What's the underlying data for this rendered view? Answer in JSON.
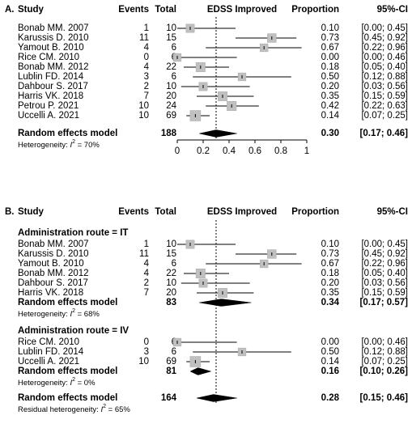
{
  "chart_data": [
    {
      "type": "forest",
      "panel_label": "A.",
      "headers": {
        "study": "Study",
        "events": "Events",
        "total": "Total",
        "plot": "EDSS Improved",
        "proportion": "Proportion",
        "ci": "95%-CI"
      },
      "groups": [
        {
          "name": "",
          "studies": [
            {
              "study": "Bonab MM. 2007",
              "events": "1",
              "total": "10",
              "proportion": 0.1,
              "lower": 0.0,
              "upper": 0.45,
              "proportion_label": "0.10",
              "ci_label": "[0.00; 0.45]"
            },
            {
              "study": "Karussis D. 2010",
              "events": "11",
              "total": "15",
              "proportion": 0.73,
              "lower": 0.45,
              "upper": 0.92,
              "proportion_label": "0.73",
              "ci_label": "[0.45; 0.92]"
            },
            {
              "study": "Yamout B. 2010",
              "events": "4",
              "total": "6",
              "proportion": 0.67,
              "lower": 0.22,
              "upper": 0.96,
              "proportion_label": "0.67",
              "ci_label": "[0.22; 0.96]"
            },
            {
              "study": "Rice CM. 2010",
              "events": "0",
              "total": "6",
              "proportion": 0.0,
              "lower": 0.0,
              "upper": 0.46,
              "proportion_label": "0.00",
              "ci_label": "[0.00; 0.46]"
            },
            {
              "study": "Bonab MM. 2012",
              "events": "4",
              "total": "22",
              "proportion": 0.18,
              "lower": 0.05,
              "upper": 0.4,
              "proportion_label": "0.18",
              "ci_label": "[0.05; 0.40]"
            },
            {
              "study": "Lublin FD. 2014",
              "events": "3",
              "total": "6",
              "proportion": 0.5,
              "lower": 0.12,
              "upper": 0.88,
              "proportion_label": "0.50",
              "ci_label": "[0.12; 0.88]"
            },
            {
              "study": "Dahbour S. 2017",
              "events": "2",
              "total": "10",
              "proportion": 0.2,
              "lower": 0.03,
              "upper": 0.56,
              "proportion_label": "0.20",
              "ci_label": "[0.03; 0.56]"
            },
            {
              "study": "Harris VK. 2018",
              "events": "7",
              "total": "20",
              "proportion": 0.35,
              "lower": 0.15,
              "upper": 0.59,
              "proportion_label": "0.35",
              "ci_label": "[0.15; 0.59]"
            },
            {
              "study": "Petrou P. 2021",
              "events": "10",
              "total": "24",
              "proportion": 0.42,
              "lower": 0.22,
              "upper": 0.63,
              "proportion_label": "0.42",
              "ci_label": "[0.22; 0.63]"
            },
            {
              "study": "Uccelli A. 2021",
              "events": "10",
              "total": "69",
              "proportion": 0.14,
              "lower": 0.07,
              "upper": 0.25,
              "proportion_label": "0.14",
              "ci_label": "[0.07; 0.25]"
            }
          ]
        }
      ],
      "overall": {
        "label": "Random effects model",
        "total": "188",
        "estimate": 0.3,
        "lower": 0.17,
        "upper": 0.46,
        "proportion_label": "0.30",
        "ci_label": "[0.17; 0.46]",
        "heterogeneity_prefix": "Heterogeneity: ",
        "heterogeneity_value": " = 70%"
      },
      "x_ticks": [
        0,
        0.2,
        0.4,
        0.6,
        0.8,
        1
      ],
      "x_tick_labels": [
        "0",
        "0.2",
        "0.4",
        "0.6",
        "0.8",
        "1"
      ],
      "xlim": [
        0,
        1
      ],
      "reference_line": 0.3
    },
    {
      "type": "forest",
      "panel_label": "B.",
      "headers": {
        "study": "Study",
        "events": "Events",
        "total": "Total",
        "plot": "EDSS Improved",
        "proportion": "Proportion",
        "ci": "95%-CI"
      },
      "groups": [
        {
          "name": "Administration route = IT",
          "studies": [
            {
              "study": "Bonab MM. 2007",
              "events": "1",
              "total": "10",
              "proportion": 0.1,
              "lower": 0.0,
              "upper": 0.45,
              "proportion_label": "0.10",
              "ci_label": "[0.00; 0.45]"
            },
            {
              "study": "Karussis D. 2010",
              "events": "11",
              "total": "15",
              "proportion": 0.73,
              "lower": 0.45,
              "upper": 0.92,
              "proportion_label": "0.73",
              "ci_label": "[0.45; 0.92]"
            },
            {
              "study": "Yamout B. 2010",
              "events": "4",
              "total": "6",
              "proportion": 0.67,
              "lower": 0.22,
              "upper": 0.96,
              "proportion_label": "0.67",
              "ci_label": "[0.22; 0.96]"
            },
            {
              "study": "Bonab MM. 2012",
              "events": "4",
              "total": "22",
              "proportion": 0.18,
              "lower": 0.05,
              "upper": 0.4,
              "proportion_label": "0.18",
              "ci_label": "[0.05; 0.40]"
            },
            {
              "study": "Dahbour S. 2017",
              "events": "2",
              "total": "10",
              "proportion": 0.2,
              "lower": 0.03,
              "upper": 0.56,
              "proportion_label": "0.20",
              "ci_label": "[0.03; 0.56]"
            },
            {
              "study": "Harris VK. 2018",
              "events": "7",
              "total": "20",
              "proportion": 0.35,
              "lower": 0.15,
              "upper": 0.59,
              "proportion_label": "0.35",
              "ci_label": "[0.15; 0.59]"
            }
          ],
          "model": {
            "label": "Random effects model",
            "total": "83",
            "estimate": 0.34,
            "lower": 0.17,
            "upper": 0.57,
            "proportion_label": "0.34",
            "ci_label": "[0.17; 0.57]",
            "heterogeneity_prefix": "Heterogeneity: ",
            "heterogeneity_value": " = 68%"
          }
        },
        {
          "name": "Administration route = IV",
          "studies": [
            {
              "study": "Rice CM. 2010",
              "events": "0",
              "total": "6",
              "proportion": 0.0,
              "lower": 0.0,
              "upper": 0.46,
              "proportion_label": "0.00",
              "ci_label": "[0.00; 0.46]"
            },
            {
              "study": "Lublin FD. 2014",
              "events": "3",
              "total": "6",
              "proportion": 0.5,
              "lower": 0.12,
              "upper": 0.88,
              "proportion_label": "0.50",
              "ci_label": "[0.12; 0.88]"
            },
            {
              "study": "Uccelli A. 2021",
              "events": "10",
              "total": "69",
              "proportion": 0.14,
              "lower": 0.07,
              "upper": 0.25,
              "proportion_label": "0.14",
              "ci_label": "[0.07; 0.25]"
            }
          ],
          "model": {
            "label": "Random effects model",
            "total": "81",
            "estimate": 0.16,
            "lower": 0.1,
            "upper": 0.26,
            "proportion_label": "0.16",
            "ci_label": "[0.10; 0.26]",
            "heterogeneity_prefix": "Heterogeneity: ",
            "heterogeneity_value": " = 0%"
          }
        }
      ],
      "overall": {
        "label": "Random effects model",
        "total": "164",
        "estimate": 0.28,
        "lower": 0.15,
        "upper": 0.46,
        "proportion_label": "0.28",
        "ci_label": "[0.15; 0.46]",
        "heterogeneity_prefix": "Residual heterogeneity: ",
        "heterogeneity_value": " = 65%"
      },
      "x_ticks": [],
      "x_tick_labels": [],
      "xlim": [
        0,
        1
      ],
      "reference_line": 0.3
    }
  ],
  "colors": {
    "square": "#c0c0c0",
    "square_border": "#a8a8a8",
    "line": "#000000",
    "diamond": "#000000",
    "axis": "#000000",
    "reference": "#000000"
  }
}
